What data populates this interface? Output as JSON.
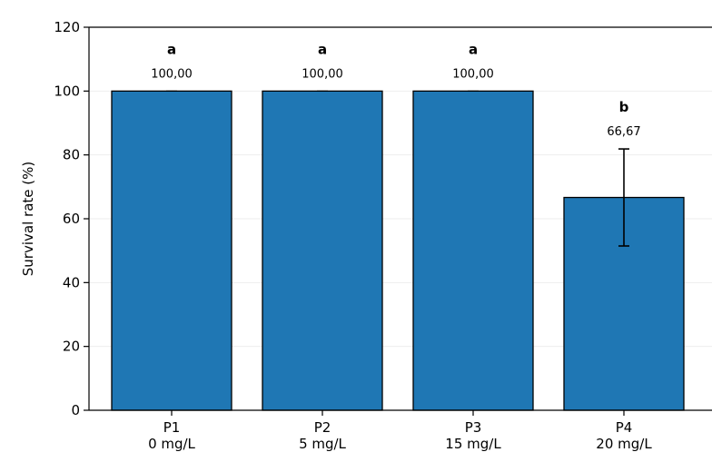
{
  "chart_data": {
    "type": "bar",
    "categories": [
      {
        "code": "P1",
        "dose": "0 mg/L"
      },
      {
        "code": "P2",
        "dose": "5 mg/L"
      },
      {
        "code": "P3",
        "dose": "15 mg/L"
      },
      {
        "code": "P4",
        "dose": "20 mg/L"
      }
    ],
    "values": [
      100,
      100,
      100,
      66.67
    ],
    "errors": [
      0,
      0,
      0,
      15.2
    ],
    "value_labels": [
      "100,00",
      "100,00",
      "100,00",
      "66,67"
    ],
    "significance": [
      "a",
      "a",
      "a",
      "b"
    ],
    "ylabel": "Survival rate (%)",
    "xlabel": "",
    "ylim": [
      0,
      120
    ],
    "yticks": [
      "0",
      "20",
      "40",
      "60",
      "80",
      "100",
      "120"
    ],
    "grid": "horizontal-light",
    "legend": "none",
    "colors": {
      "bar_fill": "#1f77b4",
      "bar_edge": "#000000",
      "grid": "#eeeeee"
    }
  }
}
